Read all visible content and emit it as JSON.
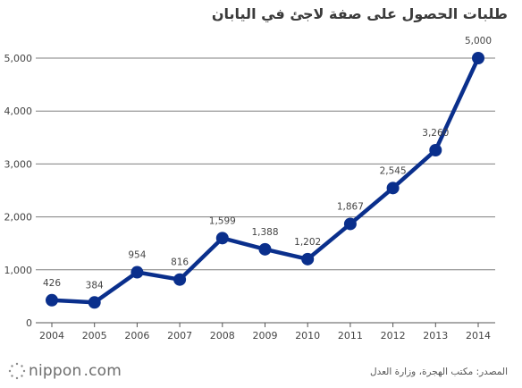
{
  "chart_data": {
    "type": "line",
    "title": "طلبات الحصول على صفة لاجئ في اليابان",
    "x": [
      "2004",
      "2005",
      "2006",
      "2007",
      "2008",
      "2009",
      "2010",
      "2011",
      "2012",
      "2013",
      "2014"
    ],
    "series": [
      {
        "values": [
          426,
          384,
          954,
          816,
          1599,
          1388,
          1202,
          1867,
          2545,
          3260,
          5000
        ]
      }
    ],
    "data_labels": [
      "426",
      "384",
      "954",
      "816",
      "1,599",
      "1,388",
      "1,202",
      "1,867",
      "2,545",
      "3,260",
      "5,000"
    ],
    "y_ticks": [
      "0",
      "1,000",
      "2,000",
      "3,000",
      "4,000",
      "5,000"
    ],
    "y_tick_values": [
      0,
      1000,
      2000,
      3000,
      4000,
      5000
    ],
    "ylim": [
      0,
      5000
    ],
    "grid": true,
    "line_color": "#0a2f8c",
    "source": "المصدر: مكتب الهجرة، وزارة العدل"
  },
  "brand": {
    "name": "nippon",
    "suffix": ".com"
  }
}
